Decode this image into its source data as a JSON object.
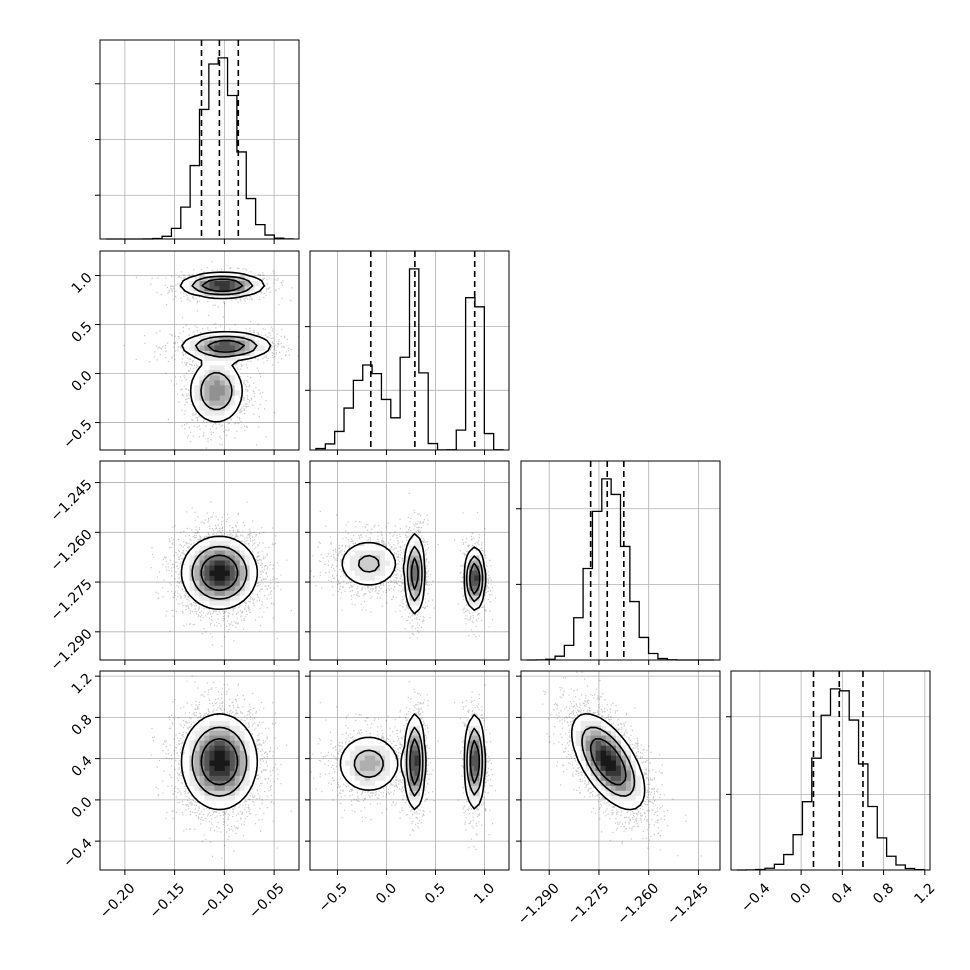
{
  "chart_data": {
    "type": "corner",
    "title": "",
    "grid": true,
    "colors": {
      "line": "#000000",
      "density": "#000000",
      "grid": "#b0b0b0"
    },
    "parameters": [
      {
        "name": "",
        "range": [
          -0.225,
          -0.025
        ],
        "ticks": [
          -0.2,
          -0.15,
          -0.1,
          -0.05
        ],
        "tick_labels": [
          "−0.20",
          "−0.15",
          "−0.10",
          "−0.05"
        ],
        "quantiles": [
          -0.123,
          -0.105,
          -0.086
        ],
        "modes": [
          {
            "mu": -0.105,
            "sd": 0.018,
            "w": 1
          }
        ]
      },
      {
        "name": "",
        "range": [
          -0.78,
          1.25
        ],
        "ticks": [
          -0.5,
          0.0,
          0.5,
          1.0
        ],
        "tick_labels": [
          "−0.5",
          "0.0",
          "0.5",
          "1.0"
        ],
        "quantiles": [
          -0.16,
          0.29,
          0.9
        ],
        "modes": [
          {
            "mu": -0.18,
            "sd": 0.17,
            "w": 0.36
          },
          {
            "mu": 0.28,
            "sd": 0.07,
            "w": 0.33
          },
          {
            "mu": 0.9,
            "sd": 0.06,
            "w": 0.31
          }
        ]
      },
      {
        "name": "",
        "range": [
          -1.2985,
          -1.2385
        ],
        "ticks": [
          -1.29,
          -1.275,
          -1.26,
          -1.245
        ],
        "tick_labels": [
          "−1.290",
          "−1.275",
          "−1.260",
          "−1.245"
        ],
        "quantiles": [
          -1.2775,
          -1.2725,
          -1.2675
        ],
        "modes": [
          {
            "mu": -1.2722,
            "sd": 0.0052,
            "w": 1
          }
        ]
      },
      {
        "name": "",
        "range": [
          -0.68,
          1.25
        ],
        "ticks": [
          -0.4,
          0.0,
          0.4,
          0.8,
          1.2
        ],
        "tick_labels": [
          "−0.4",
          "0.0",
          "0.4",
          "0.8",
          "1.2"
        ],
        "quantiles": [
          0.12,
          0.37,
          0.6
        ],
        "modes": [
          {
            "mu": 0.37,
            "sd": 0.22,
            "w": 1
          }
        ]
      }
    ],
    "hist_ticks": [
      [
        0.22,
        0.5,
        0.78
      ],
      [
        0.3,
        0.62
      ],
      [
        0.38,
        0.76
      ],
      [
        0.38,
        0.77
      ]
    ],
    "pairs": [
      {
        "row": 1,
        "col": 0,
        "clusters": [
          {
            "x": -0.102,
            "y": 0.9,
            "sx": 0.02,
            "sy": 0.06,
            "w": 0.31
          },
          {
            "x": -0.098,
            "y": 0.28,
            "sx": 0.022,
            "sy": 0.07,
            "w": 0.33
          },
          {
            "x": -0.108,
            "y": -0.18,
            "sx": 0.014,
            "sy": 0.17,
            "w": 0.36
          }
        ]
      },
      {
        "row": 2,
        "col": 0,
        "clusters": [
          {
            "x": -0.105,
            "y": -1.2722,
            "sx": 0.018,
            "sy": 0.0052,
            "w": 1
          }
        ]
      },
      {
        "row": 2,
        "col": 1,
        "clusters": [
          {
            "x": -0.18,
            "y": -1.2695,
            "sx": 0.17,
            "sy": 0.004,
            "w": 0.36
          },
          {
            "x": 0.29,
            "y": -1.2725,
            "sx": 0.05,
            "sy": 0.006,
            "w": 0.33
          },
          {
            "x": 0.9,
            "y": -1.274,
            "sx": 0.05,
            "sy": 0.0045,
            "w": 0.31
          }
        ]
      },
      {
        "row": 3,
        "col": 0,
        "clusters": [
          {
            "x": -0.105,
            "y": 0.37,
            "sx": 0.018,
            "sy": 0.22,
            "w": 1
          }
        ]
      },
      {
        "row": 3,
        "col": 1,
        "clusters": [
          {
            "x": -0.18,
            "y": 0.35,
            "sx": 0.17,
            "sy": 0.15,
            "w": 0.36
          },
          {
            "x": 0.29,
            "y": 0.37,
            "sx": 0.05,
            "sy": 0.22,
            "w": 0.33
          },
          {
            "x": 0.9,
            "y": 0.37,
            "sx": 0.05,
            "sy": 0.22,
            "w": 0.31
          }
        ]
      },
      {
        "row": 3,
        "col": 2,
        "clusters": [
          {
            "x": -1.2722,
            "y": 0.37,
            "sx": 0.0052,
            "sy": 0.22,
            "w": 1,
            "rho": -0.6
          }
        ]
      }
    ]
  }
}
